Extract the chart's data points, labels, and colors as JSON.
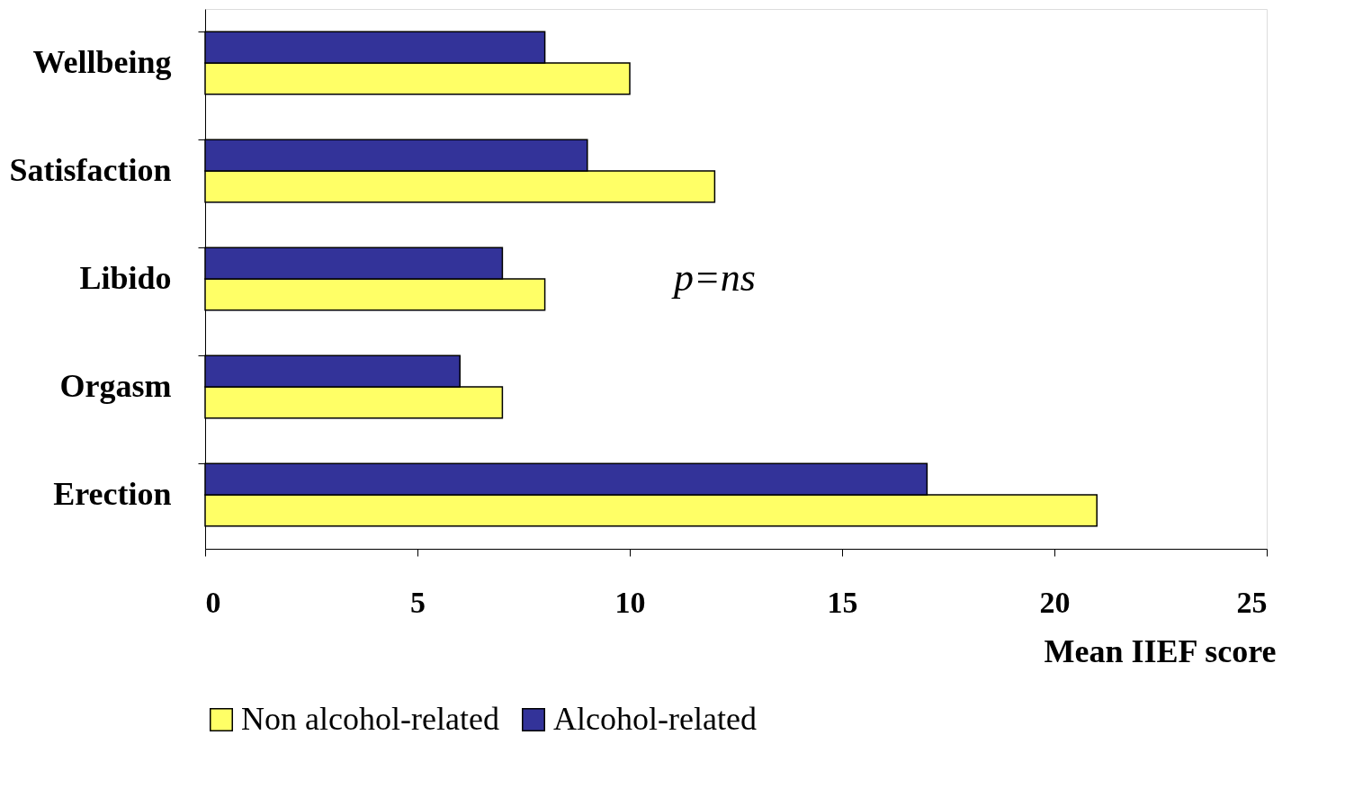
{
  "chart_data": {
    "type": "bar",
    "orientation": "horizontal",
    "xlabel": "Mean IIEF score",
    "categories": [
      "Wellbeing",
      "Satisfaction",
      "Libido",
      "Orgasm",
      "Erection"
    ],
    "series": [
      {
        "name": "Non alcohol-related",
        "color": "#ffff66",
        "values": [
          10,
          12,
          8,
          7,
          21
        ]
      },
      {
        "name": "Alcohol-related",
        "color": "#333399",
        "values": [
          8,
          9,
          7,
          6,
          17
        ]
      }
    ],
    "xlim": [
      0,
      25
    ],
    "xticks": [
      0,
      5,
      10,
      15,
      20,
      25
    ],
    "grid": false,
    "legend": "bottom",
    "annotations": [
      "p=ns"
    ]
  }
}
